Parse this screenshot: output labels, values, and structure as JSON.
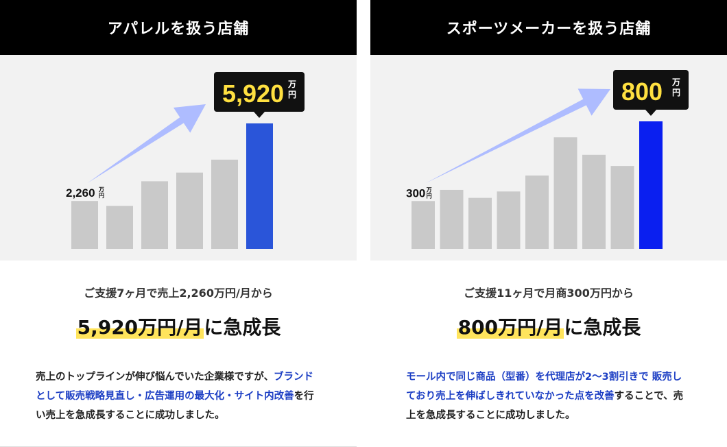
{
  "colors": {
    "bar_gray": "#c9c9c9",
    "bar_highlight_left": "#2a55d9",
    "bar_highlight_right": "#0a1ff0",
    "arrow": "#aebcff",
    "accent_yellow": "#ffe040",
    "text_blue": "#1d3fc4"
  },
  "left": {
    "header": "アパレルを扱う店舗",
    "subtitle": "ご支援7ヶ月で売上2,260万円/月から",
    "headline_highlight": "5,920万円/月",
    "headline_rest": "に急成長",
    "desc_plain_1": "売上のトップラインが伸び悩んでいた企業様ですが、",
    "desc_blue": "ブランドとして販売戦略見直し・広告運用の最大化・サイト内改善",
    "desc_plain_2": "を行い売上を急成長することに成功しました。"
  },
  "right": {
    "header": "スポーツメーカーを扱う店舗",
    "subtitle": "ご支援11ヶ月で月商300万円から",
    "headline_highlight": "800万円/月",
    "headline_rest": "に急成長",
    "desc_blue": "モール内で同じ商品（型番）を代理店が2〜3割引きで 販売しており売上を伸ばしきれていなかった点を改善",
    "desc_plain": "することで、売上を急成長することに成功しました。"
  },
  "chart_data": [
    {
      "type": "bar",
      "unit": "万円",
      "values": [
        2260,
        2030,
        3190,
        3600,
        4210,
        5920
      ],
      "start_label": "2,260",
      "end_label": "5,920",
      "highlight_index": 5
    },
    {
      "type": "bar",
      "unit": "万円",
      "values": [
        300,
        370,
        320,
        360,
        460,
        700,
        590,
        520,
        800
      ],
      "start_label": "300",
      "end_label": "800",
      "highlight_index": 8
    }
  ]
}
